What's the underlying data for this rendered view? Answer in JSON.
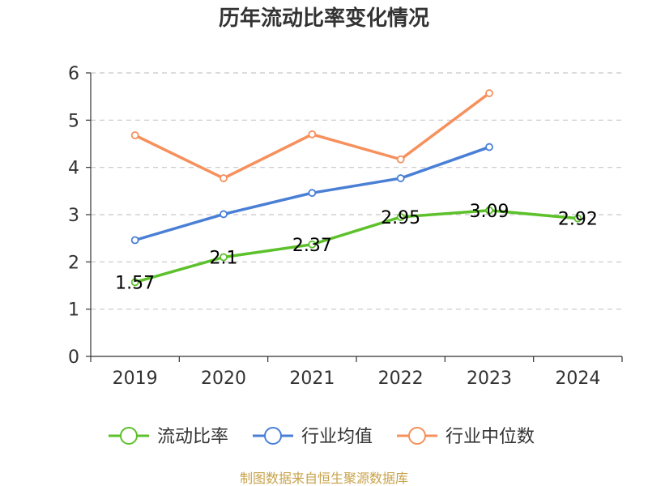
{
  "chart_data": {
    "type": "line",
    "title": "历年流动比率变化情况",
    "categories": [
      "2019",
      "2020",
      "2021",
      "2022",
      "2023",
      "2024"
    ],
    "ylim": [
      0,
      6
    ],
    "yticks": [
      "0",
      "1",
      "2",
      "3",
      "4",
      "5",
      "6"
    ],
    "grid": true,
    "legend_position": "bottom",
    "series": [
      {
        "name": "流动比率",
        "color": "#5cc12b",
        "values": [
          1.57,
          2.1,
          2.37,
          2.95,
          3.09,
          2.92
        ],
        "labels": [
          "1.57",
          "2.1",
          "2.37",
          "2.95",
          "3.09",
          "2.92"
        ]
      },
      {
        "name": "行业均值",
        "color": "#4a7fd6",
        "values": [
          2.46,
          3.01,
          3.46,
          3.77,
          4.43,
          null
        ]
      },
      {
        "name": "行业中位数",
        "color": "#f6905c",
        "values": [
          4.68,
          3.77,
          4.7,
          4.17,
          5.57,
          null
        ]
      }
    ]
  },
  "footer": {
    "source": "制图数据来自恒生聚源数据库"
  }
}
